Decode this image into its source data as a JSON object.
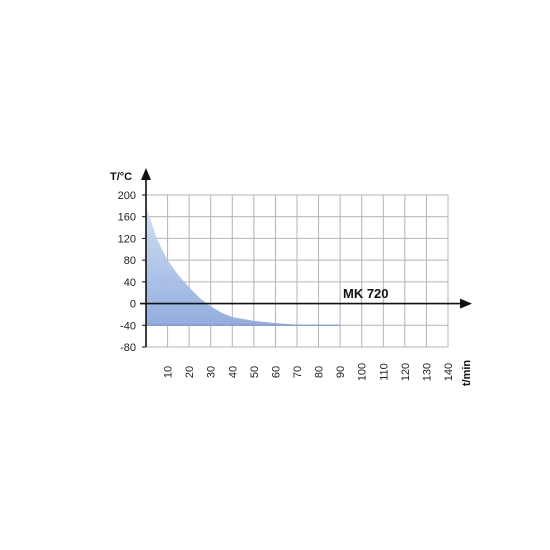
{
  "chart_data": {
    "type": "area",
    "ylabel": "T/°C",
    "xlabel": "t/min",
    "series_label": "MK 720",
    "x_ticks": [
      10,
      20,
      30,
      40,
      50,
      60,
      70,
      80,
      90,
      100,
      110,
      120,
      130,
      140
    ],
    "y_ticks": [
      200,
      160,
      120,
      80,
      40,
      0,
      -40,
      -80
    ],
    "xlim": [
      0,
      140
    ],
    "ylim": [
      -80,
      200
    ],
    "grid": true,
    "colors": {
      "fill_light": "#c4d8f0",
      "fill_dark": "#8aa6dc",
      "axis": "#111111",
      "grid": "#b4b4b4"
    },
    "series": [
      {
        "name": "MK 720",
        "x": [
          0,
          2,
          5,
          8,
          10,
          15,
          20,
          25,
          30,
          35,
          40,
          50,
          60,
          70,
          80,
          90
        ],
        "y": [
          180,
          155,
          120,
          95,
          80,
          52,
          30,
          10,
          -5,
          -17,
          -25,
          -32,
          -36,
          -39,
          -40,
          -40
        ]
      }
    ]
  }
}
